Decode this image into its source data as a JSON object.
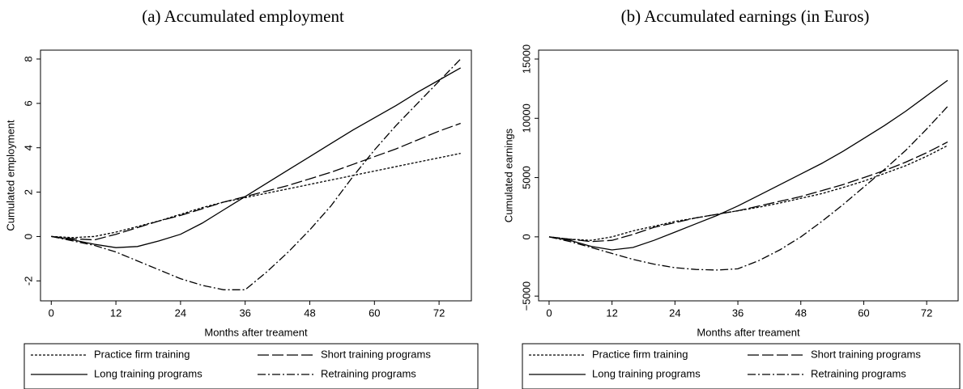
{
  "chart_data": [
    {
      "type": "line",
      "title": "(a) Accumulated employment",
      "xlabel": "Months after treament",
      "ylabel": "Cumulated employment",
      "x": [
        0,
        4,
        8,
        12,
        16,
        20,
        24,
        28,
        32,
        36,
        40,
        44,
        48,
        52,
        56,
        60,
        64,
        68,
        72,
        76
      ],
      "xlim": [
        -2,
        78
      ],
      "xticks": [
        0,
        12,
        24,
        36,
        48,
        60,
        72
      ],
      "ylim": [
        -2.9,
        8.4
      ],
      "yticks": [
        -2,
        0,
        2,
        4,
        6,
        8
      ],
      "legend": "bottom",
      "series": [
        {
          "name": "Practice firm training",
          "color": "#000000",
          "dash": "3,2",
          "values": [
            0,
            -0.05,
            0,
            0.2,
            0.45,
            0.7,
            1.0,
            1.3,
            1.55,
            1.75,
            1.95,
            2.15,
            2.35,
            2.55,
            2.75,
            2.95,
            3.15,
            3.35,
            3.55,
            3.75
          ]
        },
        {
          "name": "Short training programs",
          "color": "#000000",
          "dash": "14,4",
          "values": [
            0,
            -0.1,
            -0.15,
            0.1,
            0.4,
            0.7,
            0.95,
            1.25,
            1.55,
            1.8,
            2.05,
            2.3,
            2.6,
            2.9,
            3.25,
            3.6,
            3.95,
            4.35,
            4.75,
            5.1
          ]
        },
        {
          "name": "Long training programs",
          "color": "#000000",
          "dash": "none",
          "values": [
            0,
            -0.15,
            -0.35,
            -0.5,
            -0.45,
            -0.2,
            0.1,
            0.6,
            1.2,
            1.8,
            2.4,
            3.0,
            3.6,
            4.2,
            4.8,
            5.35,
            5.9,
            6.5,
            7.05,
            7.6
          ]
        },
        {
          "name": "Retraining programs",
          "color": "#000000",
          "dash": "10,3,2,3",
          "values": [
            0,
            -0.2,
            -0.4,
            -0.7,
            -1.1,
            -1.5,
            -1.9,
            -2.2,
            -2.4,
            -2.4,
            -1.6,
            -0.7,
            0.3,
            1.4,
            2.7,
            3.9,
            5.0,
            6.0,
            7.0,
            8.0
          ]
        }
      ]
    },
    {
      "type": "line",
      "title": "(b) Accumulated earnings (in Euros)",
      "xlabel": "Months after treament",
      "ylabel": "Cumulated earnings",
      "x": [
        0,
        4,
        8,
        12,
        16,
        20,
        24,
        28,
        32,
        36,
        40,
        44,
        48,
        52,
        56,
        60,
        64,
        68,
        72,
        76
      ],
      "xlim": [
        -2,
        78
      ],
      "xticks": [
        0,
        12,
        24,
        36,
        48,
        60,
        72
      ],
      "ylim": [
        -5400,
        15750
      ],
      "yticks": [
        {
          "value": -5000,
          "label": "−5000"
        },
        0,
        5000,
        10000,
        15000
      ],
      "legend": "bottom",
      "series": [
        {
          "name": "Practice firm training",
          "color": "#000000",
          "dash": "3,2",
          "values": [
            0,
            -200,
            -300,
            0,
            500,
            900,
            1300,
            1600,
            1900,
            2200,
            2500,
            2850,
            3250,
            3650,
            4150,
            4700,
            5350,
            6000,
            6800,
            7700
          ]
        },
        {
          "name": "Short training programs",
          "color": "#000000",
          "dash": "14,4",
          "values": [
            0,
            -200,
            -400,
            -300,
            200,
            800,
            1200,
            1600,
            1900,
            2200,
            2600,
            3000,
            3400,
            3900,
            4400,
            5000,
            5600,
            6300,
            7100,
            8000
          ]
        },
        {
          "name": "Long training programs",
          "color": "#000000",
          "dash": "none",
          "values": [
            0,
            -300,
            -800,
            -1100,
            -900,
            -300,
            400,
            1100,
            1800,
            2600,
            3500,
            4400,
            5300,
            6200,
            7200,
            8300,
            9400,
            10600,
            11900,
            13200
          ]
        },
        {
          "name": "Retraining programs",
          "color": "#000000",
          "dash": "10,3,2,3",
          "values": [
            0,
            -400,
            -900,
            -1400,
            -1900,
            -2300,
            -2600,
            -2750,
            -2800,
            -2700,
            -2000,
            -1100,
            0,
            1300,
            2700,
            4200,
            5700,
            7300,
            9100,
            11000
          ]
        }
      ]
    }
  ]
}
